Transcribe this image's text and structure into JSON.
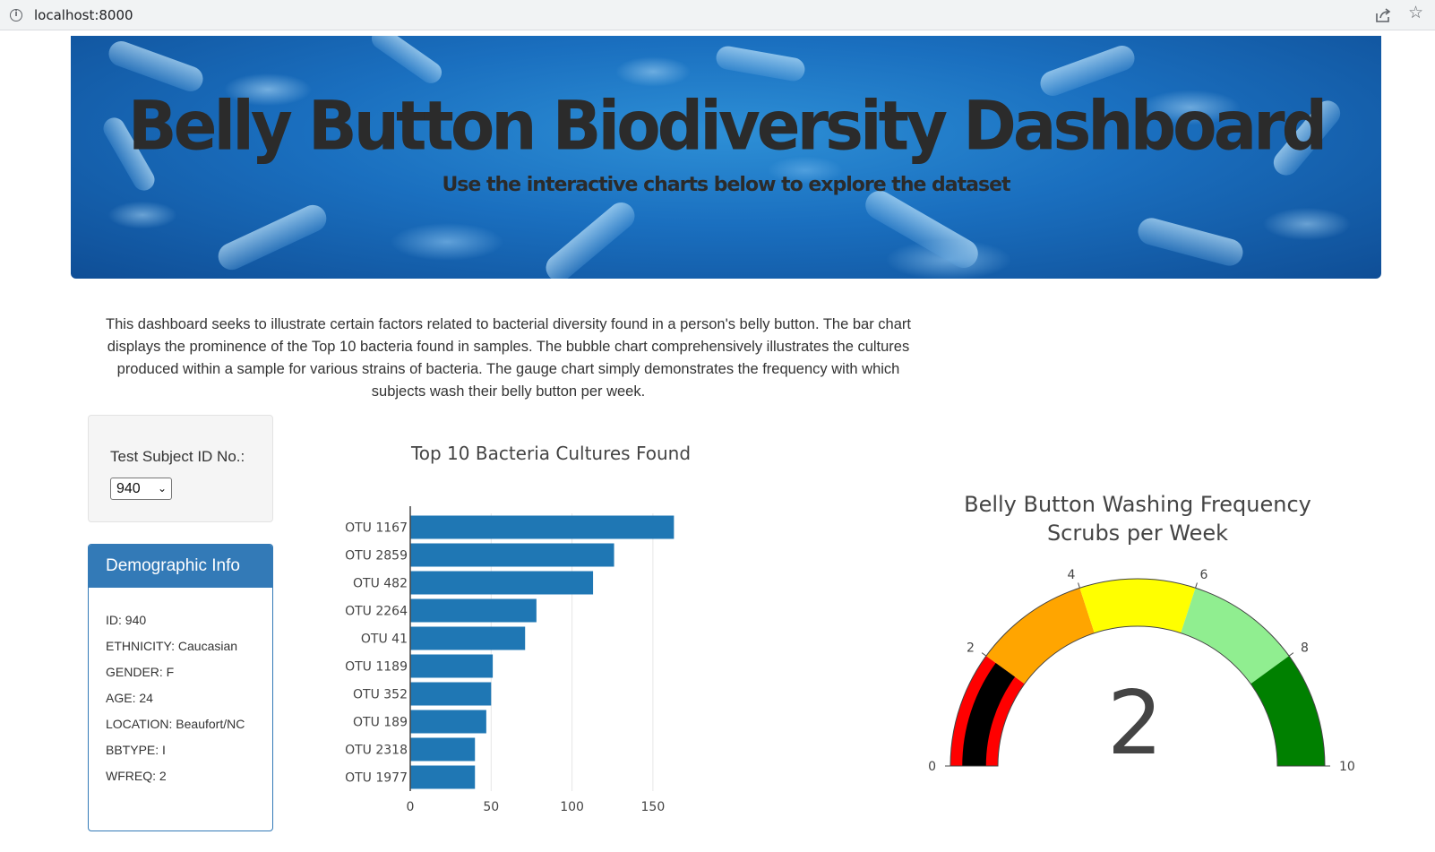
{
  "browser": {
    "url": "localhost:8000"
  },
  "hero": {
    "title": "Belly Button Biodiversity Dashboard",
    "subtitle": "Use the interactive charts below to explore the dataset"
  },
  "description": "This dashboard seeks to illustrate certain factors related to bacterial diversity found in a person's belly button. The bar chart displays the prominence of the Top 10 bacteria found in samples. The bubble chart comprehensively illustrates the cultures produced within a sample for various strains of bacteria. The gauge chart simply demonstrates the frequency with which subjects wash their belly button per week.",
  "selector": {
    "label": "Test Subject ID No.:",
    "selected": "940"
  },
  "demographics": {
    "title": "Demographic Info",
    "rows": [
      "ID: 940",
      "ETHNICITY: Caucasian",
      "GENDER: F",
      "AGE: 24",
      "LOCATION: Beaufort/NC",
      "BBTYPE: I",
      "WFREQ: 2"
    ]
  },
  "chart_data": [
    {
      "type": "bar",
      "orientation": "horizontal",
      "title": "Top 10 Bacteria Cultures Found",
      "categories": [
        "OTU 1167",
        "OTU 2859",
        "OTU 482",
        "OTU 2264",
        "OTU 41",
        "OTU 1189",
        "OTU 352",
        "OTU 189",
        "OTU 2318",
        "OTU 1977"
      ],
      "values": [
        163,
        126,
        113,
        78,
        71,
        51,
        50,
        47,
        40,
        40
      ],
      "xticks": [
        0,
        50,
        100,
        150
      ],
      "xlim": [
        0,
        170
      ],
      "grid": true,
      "color": "#1f77b4"
    },
    {
      "type": "gauge",
      "title": "Belly Button Washing Frequency",
      "subtitle": "Scrubs per Week",
      "value": 2,
      "value_label": "2",
      "range": [
        0,
        10
      ],
      "ticks": [
        "0",
        "2",
        "4",
        "6",
        "8",
        "10"
      ],
      "steps": [
        {
          "range": [
            0,
            2
          ],
          "color": "#ff0000"
        },
        {
          "range": [
            2,
            4
          ],
          "color": "#ffa500"
        },
        {
          "range": [
            4,
            6
          ],
          "color": "#ffff00"
        },
        {
          "range": [
            6,
            8
          ],
          "color": "#90ee90"
        },
        {
          "range": [
            8,
            10
          ],
          "color": "#008000"
        }
      ],
      "bar_color": "#000000"
    }
  ]
}
